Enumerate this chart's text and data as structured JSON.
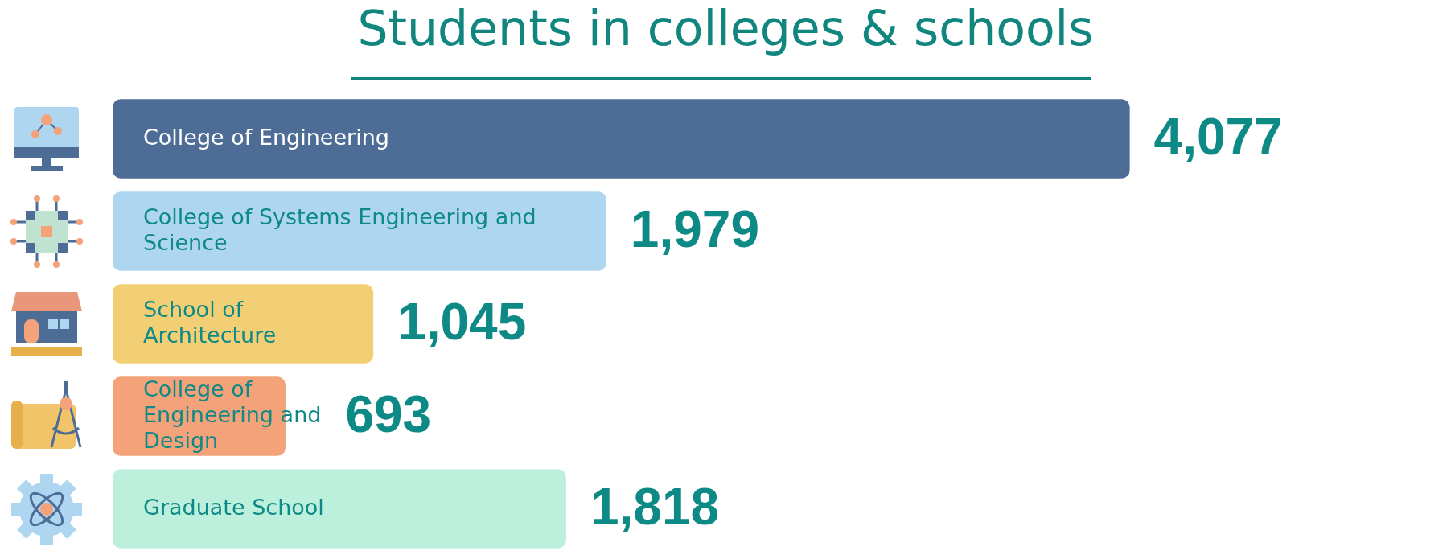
{
  "chart_data": {
    "type": "bar",
    "orientation": "horizontal",
    "title": "Students in colleges & schools",
    "categories": [
      "College of Engineering",
      "College of Systems Engineering and Science",
      "School of Architecture",
      "College of Engineering and Design",
      "Graduate School"
    ],
    "values": [
      4077,
      1979,
      1045,
      693,
      1818
    ],
    "colors": [
      "#4e6d96",
      "#aed6f1",
      "#f2cf75",
      "#f4a27a",
      "#bdf0dc"
    ],
    "value_labels": [
      "4,077",
      "1,979",
      "1,045",
      "693",
      "1,818"
    ],
    "legend": false
  }
}
